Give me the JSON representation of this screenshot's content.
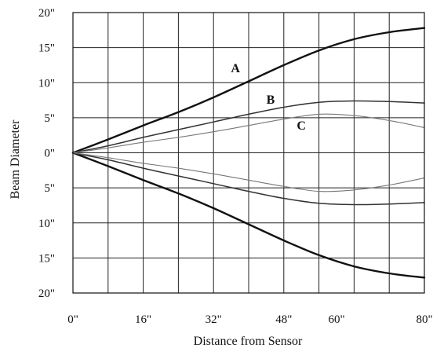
{
  "chart_data": {
    "type": "line",
    "title": "",
    "xlabel": "Distance from Sensor",
    "ylabel": "Beam Diameter",
    "xlim": [
      0,
      80
    ],
    "ylim": [
      -20,
      20
    ],
    "grid": true,
    "x_ticks": [
      0,
      16,
      32,
      48,
      60,
      80
    ],
    "x_tick_labels": [
      "0\"",
      "16\"",
      "32\"",
      "48\"",
      "60\"",
      "80\""
    ],
    "y_ticks": [
      20,
      15,
      10,
      5,
      0,
      -5,
      -10,
      -15,
      -20
    ],
    "y_tick_labels": [
      "20\"",
      "15\"",
      "10\"",
      "5\"",
      "0\"",
      "5\"",
      "10\"",
      "15\"",
      "20\""
    ],
    "curve_labels": [
      {
        "text": "A",
        "x": 37,
        "y": 11.5
      },
      {
        "text": "B",
        "x": 45,
        "y": 7.0
      },
      {
        "text": "C",
        "x": 52,
        "y": 3.3
      }
    ],
    "series": [
      {
        "name": "A",
        "color": "#111111",
        "width": 2.4,
        "x": [
          0,
          8,
          16,
          24,
          32,
          40,
          48,
          56,
          64,
          72,
          80
        ],
        "upper": [
          0,
          1.9,
          3.9,
          5.8,
          7.9,
          10.2,
          12.5,
          14.6,
          16.2,
          17.2,
          17.8
        ],
        "lower": [
          0,
          -1.9,
          -3.9,
          -5.8,
          -7.9,
          -10.2,
          -12.5,
          -14.6,
          -16.2,
          -17.2,
          -17.8
        ]
      },
      {
        "name": "B",
        "color": "#333333",
        "width": 1.5,
        "x": [
          0,
          8,
          16,
          24,
          32,
          40,
          48,
          56,
          64,
          72,
          80
        ],
        "upper": [
          0,
          1.0,
          2.2,
          3.3,
          4.4,
          5.5,
          6.5,
          7.2,
          7.4,
          7.3,
          7.1
        ],
        "lower": [
          0,
          -1.0,
          -2.2,
          -3.3,
          -4.4,
          -5.5,
          -6.5,
          -7.2,
          -7.4,
          -7.3,
          -7.1
        ]
      },
      {
        "name": "C",
        "color": "#777777",
        "width": 1.1,
        "x": [
          0,
          8,
          16,
          24,
          32,
          40,
          48,
          56,
          64,
          72,
          80
        ],
        "upper": [
          0,
          0.7,
          1.5,
          2.2,
          3.0,
          3.9,
          4.8,
          5.5,
          5.3,
          4.6,
          3.6
        ],
        "lower": [
          0,
          -0.7,
          -1.5,
          -2.2,
          -3.0,
          -3.9,
          -4.8,
          -5.5,
          -5.3,
          -4.6,
          -3.6
        ]
      }
    ]
  }
}
